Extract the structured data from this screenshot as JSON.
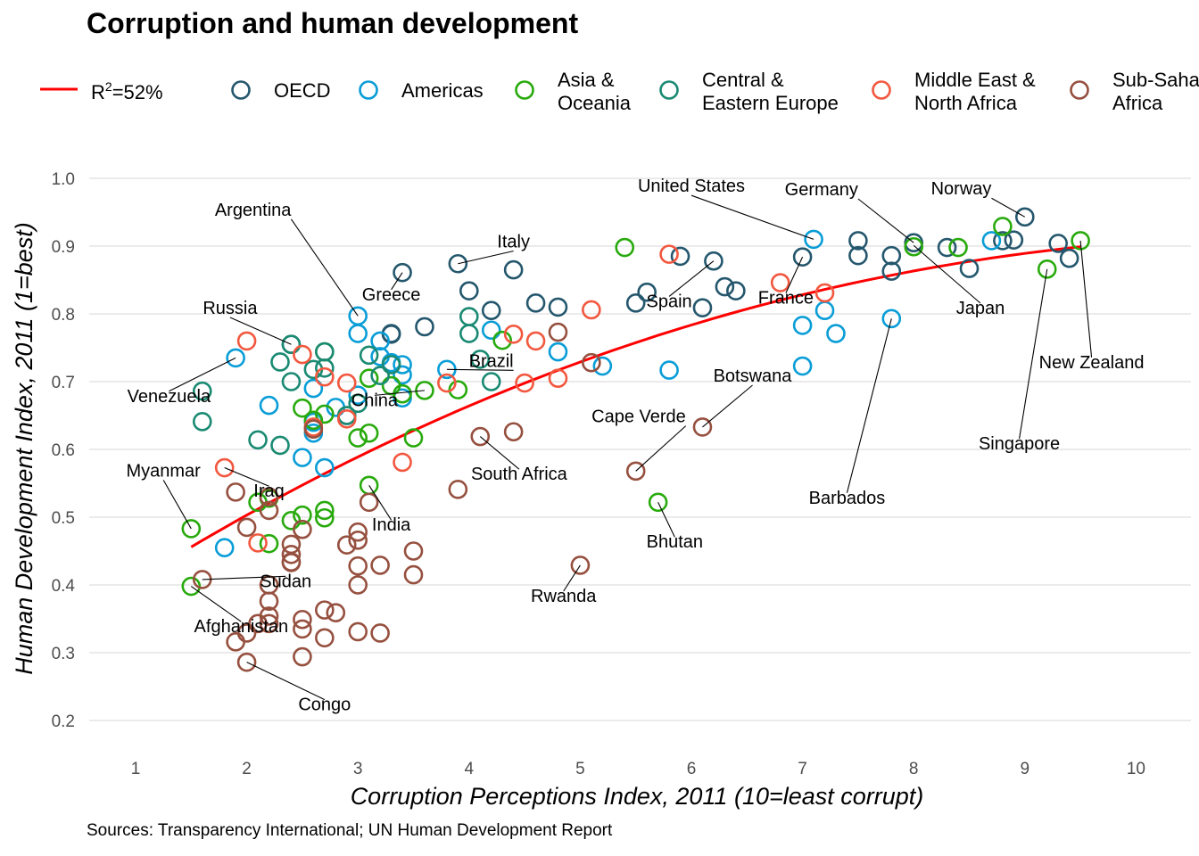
{
  "header": {
    "title": "Corruption and human development",
    "source": "Sources: Transparency International; UN Human Development Report"
  },
  "chart_data": {
    "type": "scatter",
    "title": "Corruption and human development",
    "xlabel": "Corruption Perceptions Index, 2011 (10=least corrupt)",
    "ylabel": "Human Development Index, 2011 (1=best)",
    "xlim": [
      0.6,
      10.3
    ],
    "ylim": [
      0.18,
      1.0
    ],
    "xticks": [
      1,
      2,
      3,
      4,
      5,
      6,
      7,
      8,
      9,
      10
    ],
    "yticks": [
      0.2,
      0.3,
      0.4,
      0.5,
      0.6,
      0.7,
      0.8,
      0.9,
      1.0
    ],
    "ytick_labels": [
      "0.2",
      "0.3",
      "0.4",
      "0.5",
      "0.6",
      "0.7",
      "0.8",
      "0.9",
      "1.0"
    ],
    "grid": "horizontal",
    "legend_position": "top",
    "trend": {
      "label_main": "R",
      "label_sup": "2",
      "label_rest": "=52%",
      "color": "#ff0000",
      "type": "log-fit"
    },
    "series": [
      {
        "name": "OECD",
        "color": "#24576d",
        "points": [
          [
            3.4,
            0.861
          ],
          [
            3.3,
            0.77
          ],
          [
            3.6,
            0.781
          ],
          [
            3.9,
            0.874
          ],
          [
            4.0,
            0.834
          ],
          [
            4.2,
            0.805
          ],
          [
            4.4,
            0.865
          ],
          [
            4.6,
            0.816
          ],
          [
            4.8,
            0.81
          ],
          [
            5.5,
            0.816
          ],
          [
            5.6,
            0.832
          ],
          [
            5.9,
            0.885
          ],
          [
            6.1,
            0.809
          ],
          [
            6.2,
            0.878
          ],
          [
            6.3,
            0.84
          ],
          [
            6.4,
            0.834
          ],
          [
            7.0,
            0.884
          ],
          [
            7.5,
            0.908
          ],
          [
            7.5,
            0.886
          ],
          [
            7.8,
            0.886
          ],
          [
            7.8,
            0.863
          ],
          [
            8.0,
            0.905
          ],
          [
            8.3,
            0.898
          ],
          [
            8.5,
            0.867
          ],
          [
            8.8,
            0.908
          ],
          [
            8.9,
            0.909
          ],
          [
            9.0,
            0.943
          ],
          [
            9.3,
            0.904
          ],
          [
            9.4,
            0.882
          ],
          [
            2.4,
            0.755
          ],
          [
            2.9,
            0.65
          ],
          [
            3.3,
            0.771
          ]
        ]
      },
      {
        "name": "Americas",
        "color": "#099dd7",
        "points": [
          [
            1.9,
            0.735
          ],
          [
            1.8,
            0.455
          ],
          [
            2.2,
            0.665
          ],
          [
            2.5,
            0.588
          ],
          [
            2.6,
            0.69
          ],
          [
            2.6,
            0.624
          ],
          [
            2.7,
            0.573
          ],
          [
            2.8,
            0.662
          ],
          [
            3.0,
            0.797
          ],
          [
            3.0,
            0.771
          ],
          [
            3.0,
            0.68
          ],
          [
            3.2,
            0.76
          ],
          [
            3.2,
            0.737
          ],
          [
            3.3,
            0.728
          ],
          [
            3.4,
            0.71
          ],
          [
            3.4,
            0.725
          ],
          [
            3.8,
            0.718
          ],
          [
            4.2,
            0.776
          ],
          [
            4.8,
            0.744
          ],
          [
            5.2,
            0.723
          ],
          [
            5.8,
            0.717
          ],
          [
            7.0,
            0.723
          ],
          [
            7.0,
            0.783
          ],
          [
            7.1,
            0.91
          ],
          [
            7.2,
            0.805
          ],
          [
            7.3,
            0.771
          ],
          [
            7.8,
            0.793
          ],
          [
            8.7,
            0.908
          ],
          [
            2.6,
            0.64
          ],
          [
            3.4,
            0.676
          ]
        ]
      },
      {
        "name": "Asia &\nOceania",
        "color": "#28aa0d",
        "points": [
          [
            1.5,
            0.398
          ],
          [
            1.5,
            0.483
          ],
          [
            2.1,
            0.522
          ],
          [
            2.2,
            0.461
          ],
          [
            2.2,
            0.528
          ],
          [
            2.4,
            0.495
          ],
          [
            2.5,
            0.503
          ],
          [
            2.5,
            0.661
          ],
          [
            2.6,
            0.643
          ],
          [
            2.7,
            0.51
          ],
          [
            2.7,
            0.499
          ],
          [
            2.7,
            0.744
          ],
          [
            2.7,
            0.652
          ],
          [
            3.0,
            0.617
          ],
          [
            3.1,
            0.547
          ],
          [
            3.1,
            0.624
          ],
          [
            3.1,
            0.705
          ],
          [
            3.3,
            0.694
          ],
          [
            3.4,
            0.682
          ],
          [
            3.5,
            0.617
          ],
          [
            3.6,
            0.687
          ],
          [
            3.9,
            0.688
          ],
          [
            4.3,
            0.761
          ],
          [
            5.4,
            0.898
          ],
          [
            5.7,
            0.522
          ],
          [
            8.0,
            0.899
          ],
          [
            8.4,
            0.898
          ],
          [
            8.8,
            0.929
          ],
          [
            9.2,
            0.866
          ],
          [
            9.5,
            0.908
          ]
        ]
      },
      {
        "name": "Central &\nEastern Europe",
        "color": "#1a8a72",
        "points": [
          [
            1.6,
            0.686
          ],
          [
            1.6,
            0.641
          ],
          [
            2.1,
            0.614
          ],
          [
            2.3,
            0.606
          ],
          [
            2.3,
            0.729
          ],
          [
            2.4,
            0.7
          ],
          [
            2.4,
            0.755
          ],
          [
            2.6,
            0.718
          ],
          [
            2.7,
            0.744
          ],
          [
            2.7,
            0.72
          ],
          [
            3.1,
            0.739
          ],
          [
            3.2,
            0.709
          ],
          [
            3.3,
            0.725
          ],
          [
            4.0,
            0.796
          ],
          [
            4.0,
            0.771
          ],
          [
            4.1,
            0.733
          ],
          [
            4.2,
            0.7
          ],
          [
            2.9,
            0.65
          ],
          [
            3.0,
            0.668
          ]
        ]
      },
      {
        "name": "Middle East &\nNorth Africa",
        "color": "#f2583f",
        "points": [
          [
            1.8,
            0.573
          ],
          [
            2.0,
            0.76
          ],
          [
            2.1,
            0.462
          ],
          [
            2.5,
            0.74
          ],
          [
            2.6,
            0.633
          ],
          [
            2.7,
            0.707
          ],
          [
            2.9,
            0.698
          ],
          [
            2.9,
            0.645
          ],
          [
            3.4,
            0.581
          ],
          [
            3.8,
            0.698
          ],
          [
            4.4,
            0.77
          ],
          [
            4.5,
            0.698
          ],
          [
            4.6,
            0.76
          ],
          [
            4.8,
            0.705
          ],
          [
            5.1,
            0.806
          ],
          [
            5.8,
            0.888
          ],
          [
            6.8,
            0.846
          ],
          [
            7.2,
            0.831
          ]
        ]
      },
      {
        "name": "Sub-Saharan\nAfrica",
        "color": "#96503f",
        "points": [
          [
            1.6,
            0.408
          ],
          [
            1.9,
            0.316
          ],
          [
            1.9,
            0.537
          ],
          [
            2.0,
            0.286
          ],
          [
            2.0,
            0.329
          ],
          [
            2.0,
            0.485
          ],
          [
            2.1,
            0.343
          ],
          [
            2.2,
            0.354
          ],
          [
            2.2,
            0.343
          ],
          [
            2.2,
            0.376
          ],
          [
            2.2,
            0.4
          ],
          [
            2.2,
            0.51
          ],
          [
            2.2,
            0.53
          ],
          [
            2.4,
            0.434
          ],
          [
            2.4,
            0.445
          ],
          [
            2.4,
            0.46
          ],
          [
            2.5,
            0.294
          ],
          [
            2.5,
            0.335
          ],
          [
            2.5,
            0.349
          ],
          [
            2.5,
            0.482
          ],
          [
            2.7,
            0.322
          ],
          [
            2.7,
            0.363
          ],
          [
            2.8,
            0.359
          ],
          [
            2.9,
            0.459
          ],
          [
            3.0,
            0.331
          ],
          [
            3.0,
            0.4
          ],
          [
            3.0,
            0.428
          ],
          [
            3.0,
            0.466
          ],
          [
            3.0,
            0.478
          ],
          [
            3.1,
            0.522
          ],
          [
            3.2,
            0.329
          ],
          [
            3.2,
            0.429
          ],
          [
            3.5,
            0.415
          ],
          [
            3.5,
            0.45
          ],
          [
            3.9,
            0.541
          ],
          [
            4.1,
            0.619
          ],
          [
            4.4,
            0.626
          ],
          [
            4.8,
            0.773
          ],
          [
            5.0,
            0.429
          ],
          [
            5.1,
            0.728
          ],
          [
            5.5,
            0.568
          ],
          [
            6.1,
            0.633
          ],
          [
            2.6,
            0.63
          ],
          [
            2.4,
            0.433
          ]
        ]
      }
    ],
    "annotations": [
      {
        "label": "Afghanistan",
        "x": 1.5,
        "y": 0.398
      },
      {
        "label": "Argentina",
        "x": 3.0,
        "y": 0.797
      },
      {
        "label": "Barbados",
        "x": 7.8,
        "y": 0.793
      },
      {
        "label": "Bhutan",
        "x": 5.7,
        "y": 0.522
      },
      {
        "label": "Botswana",
        "x": 6.1,
        "y": 0.633
      },
      {
        "label": "Brazil",
        "x": 3.8,
        "y": 0.718
      },
      {
        "label": "Cape Verde",
        "x": 5.5,
        "y": 0.568
      },
      {
        "label": "China",
        "x": 3.6,
        "y": 0.687
      },
      {
        "label": "Congo",
        "x": 2.0,
        "y": 0.286
      },
      {
        "label": "France",
        "x": 7.0,
        "y": 0.884
      },
      {
        "label": "Germany",
        "x": 8.0,
        "y": 0.905
      },
      {
        "label": "Greece",
        "x": 3.4,
        "y": 0.861
      },
      {
        "label": "India",
        "x": 3.1,
        "y": 0.547
      },
      {
        "label": "Iraq",
        "x": 1.8,
        "y": 0.573
      },
      {
        "label": "Italy",
        "x": 3.9,
        "y": 0.874
      },
      {
        "label": "Japan",
        "x": 8.0,
        "y": 0.901
      },
      {
        "label": "Myanmar",
        "x": 1.5,
        "y": 0.483
      },
      {
        "label": "New Zealand",
        "x": 9.5,
        "y": 0.908
      },
      {
        "label": "Norway",
        "x": 9.0,
        "y": 0.943
      },
      {
        "label": "Russia",
        "x": 2.4,
        "y": 0.755
      },
      {
        "label": "Rwanda",
        "x": 5.0,
        "y": 0.429
      },
      {
        "label": "Singapore",
        "x": 9.2,
        "y": 0.866
      },
      {
        "label": "South Africa",
        "x": 4.1,
        "y": 0.619
      },
      {
        "label": "Spain",
        "x": 6.2,
        "y": 0.878
      },
      {
        "label": "Sudan",
        "x": 1.6,
        "y": 0.408
      },
      {
        "label": "United States",
        "x": 7.1,
        "y": 0.91
      },
      {
        "label": "Venezuela",
        "x": 1.9,
        "y": 0.735
      }
    ]
  }
}
